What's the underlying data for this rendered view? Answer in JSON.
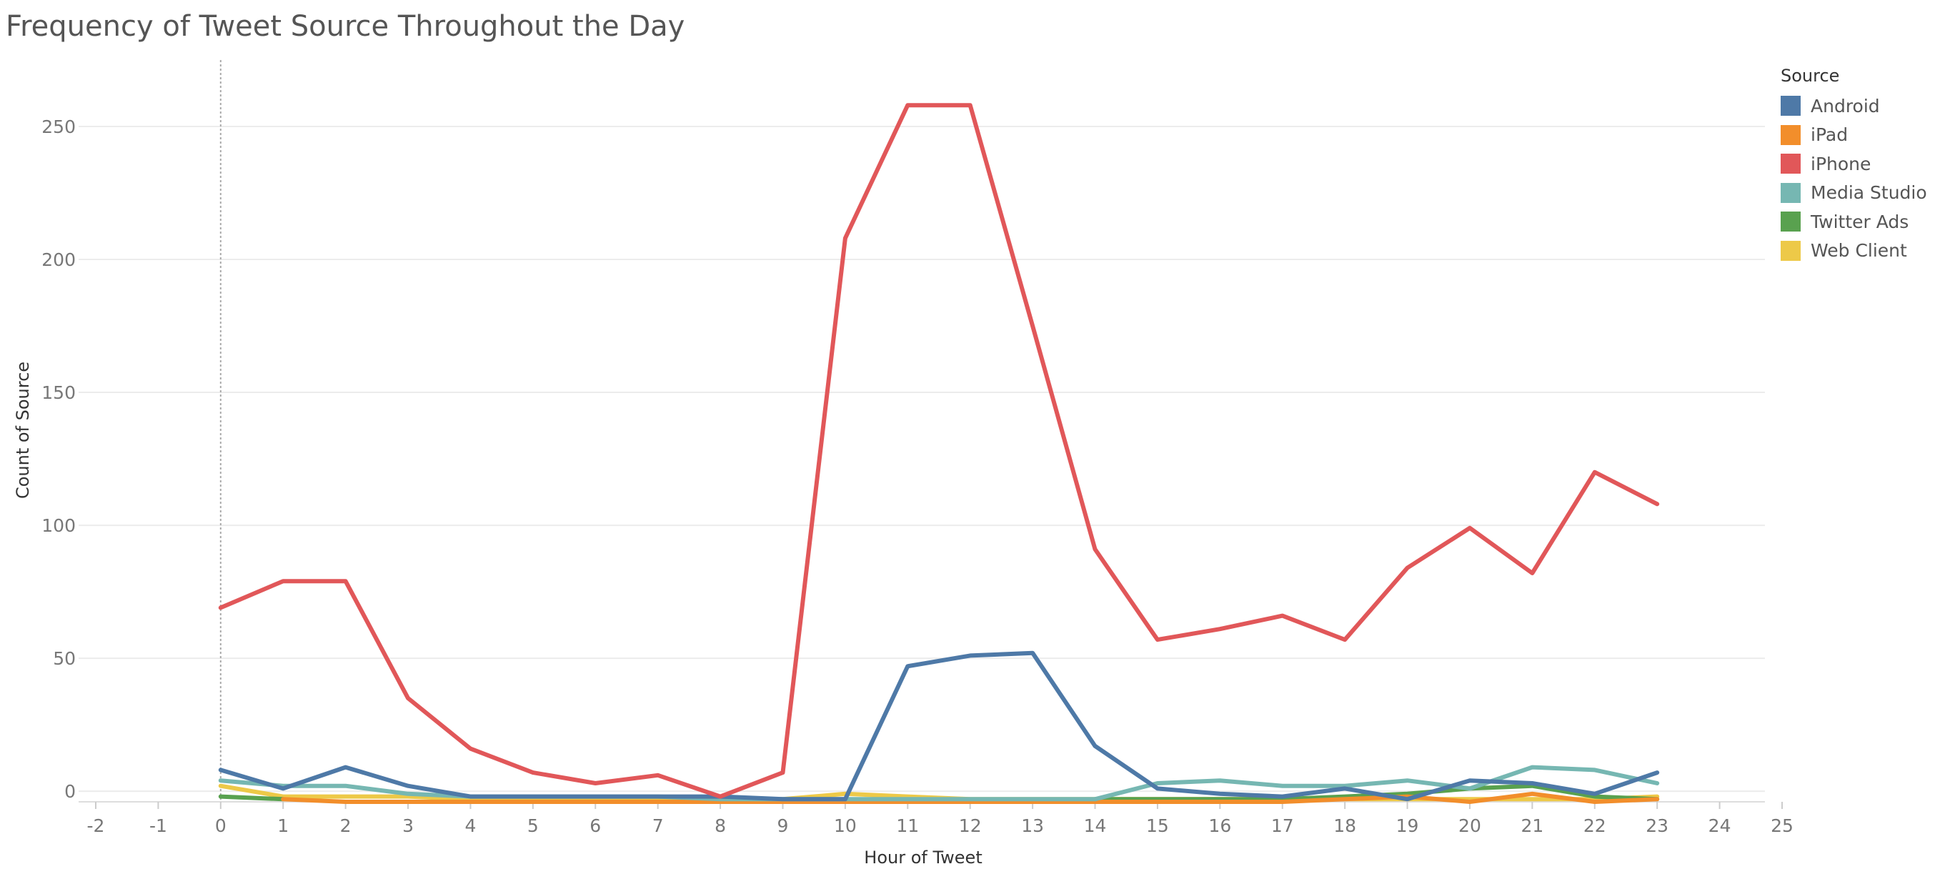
{
  "chart_data": {
    "type": "line",
    "title": "Frequency of Tweet Source Throughout the Day",
    "xlabel": "Hour of Tweet",
    "ylabel": "Count of Source",
    "x_ticks": [
      -2,
      -1,
      0,
      1,
      2,
      3,
      4,
      5,
      6,
      7,
      8,
      9,
      10,
      11,
      12,
      13,
      14,
      15,
      16,
      17,
      18,
      19,
      20,
      21,
      22,
      23,
      24,
      25
    ],
    "y_ticks": [
      0,
      50,
      100,
      150,
      200,
      250
    ],
    "xlim": [
      -2,
      25
    ],
    "ylim": [
      -4,
      275
    ],
    "grid": true,
    "legend": {
      "title": "Source",
      "position": "right"
    },
    "x": [
      0,
      1,
      2,
      3,
      4,
      5,
      6,
      7,
      8,
      9,
      10,
      11,
      12,
      13,
      14,
      15,
      16,
      17,
      18,
      19,
      20,
      21,
      22,
      23
    ],
    "series": [
      {
        "name": "Android",
        "color": "#4e79a7",
        "values": [
          8,
          1,
          9,
          2,
          -2,
          -2,
          -2,
          -2,
          -2,
          -3,
          -3,
          47,
          51,
          52,
          17,
          1,
          -1,
          -2,
          1,
          -3,
          4,
          3,
          -1,
          7
        ]
      },
      {
        "name": "iPad",
        "color": "#f28e2b",
        "values": [
          null,
          -3,
          -4,
          -4,
          -4,
          -4,
          -4,
          -4,
          -4,
          -4,
          -4,
          -4,
          -4,
          -4,
          -4,
          -4,
          -4,
          -4,
          -3,
          -2,
          -4,
          -1,
          -4,
          -3
        ]
      },
      {
        "name": "iPhone",
        "color": "#e15759",
        "values": [
          69,
          79,
          79,
          35,
          16,
          7,
          3,
          6,
          -2,
          7,
          208,
          258,
          258,
          175,
          91,
          57,
          61,
          66,
          57,
          84,
          99,
          82,
          120,
          108
        ]
      },
      {
        "name": "Media Studio",
        "color": "#76b7b2",
        "values": [
          4,
          2,
          2,
          -1,
          -2,
          -2,
          -2,
          -2,
          -3,
          -3,
          -3,
          -3,
          -3,
          -3,
          -3,
          3,
          4,
          2,
          2,
          4,
          1,
          9,
          8,
          3
        ]
      },
      {
        "name": "Twitter Ads",
        "color": "#59a14f",
        "values": [
          -2,
          -3,
          null,
          null,
          null,
          null,
          null,
          null,
          null,
          null,
          null,
          null,
          null,
          null,
          -3,
          -3,
          -3,
          -3,
          -2,
          -1,
          1,
          2,
          -2,
          -3
        ]
      },
      {
        "name": "Web Client",
        "color": "#edc948",
        "values": [
          2,
          -2,
          -2,
          -2,
          -3,
          -3,
          -3,
          -3,
          -3,
          -3,
          -1,
          -2,
          -3,
          -3,
          -3,
          -3,
          -3,
          -3,
          -3,
          -3,
          -3,
          -3,
          -3,
          -2
        ]
      }
    ]
  }
}
